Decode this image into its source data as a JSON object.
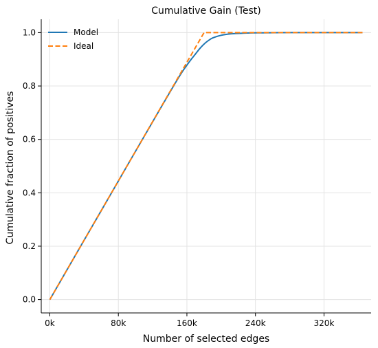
{
  "chart_data": {
    "type": "line",
    "title": "Cumulative Gain (Test)",
    "xlabel": "Number of selected edges",
    "ylabel": "Cumulative fraction of positives",
    "xlim": [
      -10000,
      375000
    ],
    "ylim": [
      -0.05,
      1.05
    ],
    "xticks": [
      0,
      80000,
      160000,
      240000,
      320000
    ],
    "xtick_labels": [
      "0k",
      "80k",
      "160k",
      "240k",
      "320k"
    ],
    "yticks": [
      0.0,
      0.2,
      0.4,
      0.6,
      0.8,
      1.0
    ],
    "ytick_labels": [
      "0.0",
      "0.2",
      "0.4",
      "0.6",
      "0.8",
      "1.0"
    ],
    "grid": true,
    "legend_position": "top-left",
    "series": [
      {
        "name": "Model",
        "color": "#1f77b4",
        "style": "solid",
        "x": [
          0,
          40000,
          80000,
          120000,
          150000,
          160000,
          165000,
          170000,
          175000,
          180000,
          185000,
          190000,
          200000,
          210000,
          220000,
          240000,
          280000,
          320000,
          365000
        ],
        "y": [
          0.0,
          0.222,
          0.444,
          0.666,
          0.83,
          0.878,
          0.9,
          0.92,
          0.94,
          0.957,
          0.97,
          0.98,
          0.99,
          0.995,
          0.997,
          0.999,
          1.0,
          1.0,
          1.0
        ]
      },
      {
        "name": "Ideal",
        "color": "#ff7f0e",
        "style": "dashed",
        "x": [
          0,
          180000,
          365000
        ],
        "y": [
          0.0,
          1.0,
          1.0
        ]
      }
    ]
  }
}
